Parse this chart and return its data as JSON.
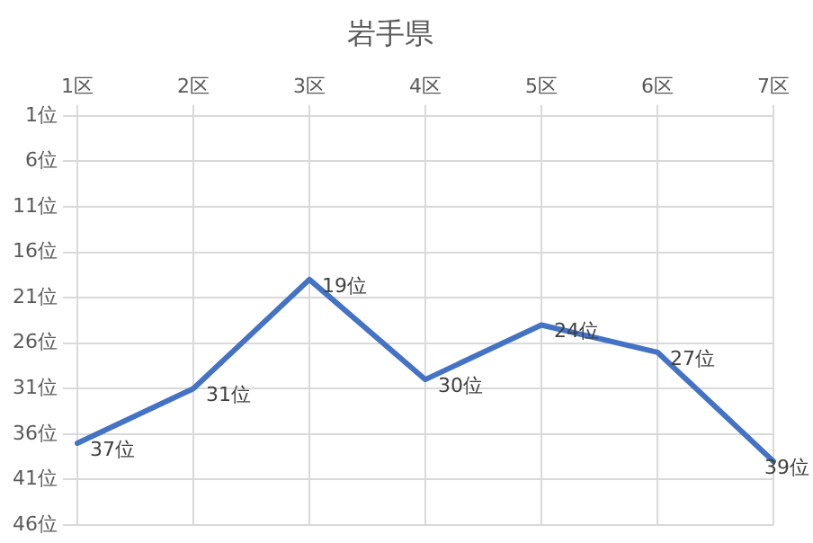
{
  "chart_data": {
    "type": "line",
    "title": "岩手県",
    "categories": [
      "1区",
      "2区",
      "3区",
      "4区",
      "5区",
      "6区",
      "7区"
    ],
    "series": [
      {
        "color": "#4472c4",
        "values": [
          37,
          31,
          19,
          30,
          24,
          27,
          39
        ],
        "value_labels": [
          "37位",
          "31位",
          "19位",
          "30位",
          "24位",
          "27位",
          "39位"
        ]
      }
    ],
    "ylim": [
      46,
      1
    ],
    "yticks": [
      {
        "value": 1,
        "label": "1位"
      },
      {
        "value": 6,
        "label": "6位"
      },
      {
        "value": 11,
        "label": "11位"
      },
      {
        "value": 16,
        "label": "16位"
      },
      {
        "value": 21,
        "label": "21位"
      },
      {
        "value": 26,
        "label": "26位"
      },
      {
        "value": 31,
        "label": "31位"
      },
      {
        "value": 36,
        "label": "36位"
      },
      {
        "value": 41,
        "label": "41位"
      },
      {
        "value": 46,
        "label": "46位"
      }
    ],
    "grid": true,
    "legend": false,
    "marker": "none",
    "line_style": "solid"
  }
}
